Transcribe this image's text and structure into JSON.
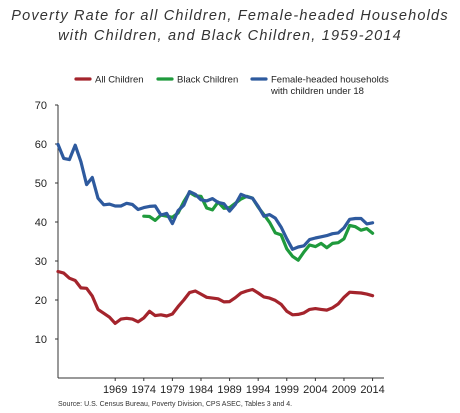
{
  "chart_data": {
    "type": "line",
    "title": "Poverty Rate for all Children, Female-headed Households",
    "subtitle": "with Children, and Black Children, 1959-2014",
    "ylim": [
      0,
      70
    ],
    "yticks": [
      10,
      20,
      30,
      40,
      50,
      60,
      70
    ],
    "xlim": [
      1959,
      2016
    ],
    "xticks": [
      1969,
      1974,
      1979,
      1984,
      1989,
      1994,
      1999,
      2004,
      2009,
      2014
    ],
    "grid": false,
    "legend_position": "top",
    "source": "Source: U.S. Census Bureau, Poverty Division, CPS ASEC, Tables 3 and 4.",
    "series": [
      {
        "name": "All Children",
        "color": "#a4242c",
        "x": [
          1959,
          1960,
          1961,
          1962,
          1963,
          1964,
          1965,
          1966,
          1967,
          1968,
          1969,
          1970,
          1971,
          1972,
          1973,
          1974,
          1975,
          1976,
          1977,
          1978,
          1979,
          1980,
          1981,
          1982,
          1983,
          1984,
          1985,
          1986,
          1987,
          1988,
          1989,
          1990,
          1991,
          1992,
          1993,
          1994,
          1995,
          1996,
          1997,
          1998,
          1999,
          2000,
          2001,
          2002,
          2003,
          2004,
          2005,
          2006,
          2007,
          2008,
          2009,
          2010,
          2011,
          2012,
          2013,
          2014
        ],
        "values": [
          27.3,
          26.9,
          25.6,
          25.0,
          23.1,
          23.0,
          21.0,
          17.6,
          16.6,
          15.6,
          14.0,
          15.1,
          15.3,
          15.1,
          14.4,
          15.4,
          17.1,
          16.0,
          16.2,
          15.9,
          16.4,
          18.3,
          20.0,
          21.9,
          22.3,
          21.5,
          20.7,
          20.5,
          20.3,
          19.5,
          19.6,
          20.6,
          21.8,
          22.3,
          22.7,
          21.8,
          20.8,
          20.5,
          19.9,
          18.9,
          17.1,
          16.2,
          16.3,
          16.7,
          17.6,
          17.8,
          17.6,
          17.4,
          18.0,
          19.0,
          20.7,
          22.0,
          21.9,
          21.8,
          21.5,
          21.1
        ]
      },
      {
        "name": "Black Children",
        "color": "#1f9a3c",
        "x": [
          1974,
          1975,
          1976,
          1977,
          1978,
          1979,
          1980,
          1981,
          1982,
          1983,
          1984,
          1985,
          1986,
          1987,
          1988,
          1989,
          1990,
          1991,
          1992,
          1993,
          1994,
          1995,
          1996,
          1997,
          1998,
          1999,
          2000,
          2001,
          2002,
          2003,
          2004,
          2005,
          2006,
          2007,
          2008,
          2009,
          2010,
          2011,
          2012,
          2013,
          2014
        ],
        "values": [
          41.5,
          41.4,
          40.4,
          41.8,
          41.5,
          41.2,
          42.3,
          45.2,
          47.6,
          46.7,
          46.6,
          43.6,
          43.1,
          45.1,
          43.5,
          43.7,
          44.8,
          45.9,
          46.6,
          46.1,
          43.8,
          41.9,
          39.9,
          37.2,
          36.7,
          33.1,
          31.2,
          30.2,
          32.3,
          34.1,
          33.7,
          34.5,
          33.4,
          34.5,
          34.7,
          35.7,
          39.1,
          38.8,
          37.9,
          38.3,
          37.1
        ]
      },
      {
        "name": "Female-headed households with children under 18",
        "color": "#2e5a9e",
        "x": [
          1959,
          1960,
          1961,
          1962,
          1963,
          1964,
          1965,
          1966,
          1967,
          1968,
          1969,
          1970,
          1971,
          1972,
          1973,
          1974,
          1975,
          1976,
          1977,
          1978,
          1979,
          1980,
          1981,
          1982,
          1983,
          1984,
          1985,
          1986,
          1987,
          1988,
          1989,
          1990,
          1991,
          1992,
          1993,
          1994,
          1995,
          1996,
          1997,
          1998,
          1999,
          2000,
          2001,
          2002,
          2003,
          2004,
          2005,
          2006,
          2007,
          2008,
          2009,
          2010,
          2011,
          2012,
          2013,
          2014
        ],
        "values": [
          59.9,
          56.3,
          56.0,
          59.7,
          55.5,
          49.6,
          51.4,
          46.1,
          44.4,
          44.6,
          44.1,
          44.1,
          44.8,
          44.5,
          43.2,
          43.7,
          44.0,
          44.1,
          41.8,
          42.2,
          39.6,
          42.9,
          44.3,
          47.8,
          47.1,
          45.7,
          45.4,
          46.0,
          45.0,
          44.7,
          42.8,
          44.5,
          47.1,
          46.5,
          46.1,
          44.0,
          41.5,
          41.9,
          41.0,
          38.7,
          35.7,
          33.0,
          33.6,
          33.9,
          35.5,
          35.9,
          36.2,
          36.5,
          37.0,
          37.2,
          38.5,
          40.7,
          40.9,
          40.9,
          39.5,
          39.8
        ]
      }
    ]
  }
}
